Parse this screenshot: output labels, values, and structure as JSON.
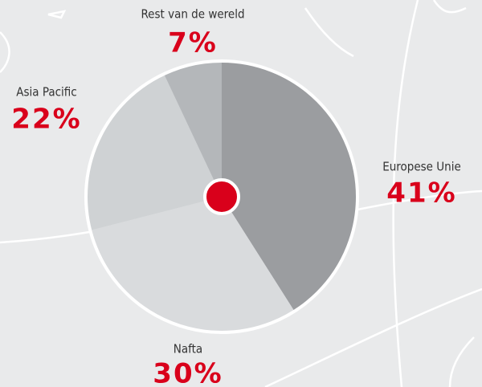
{
  "chart_data": {
    "type": "pie",
    "categories": [
      "Europese Unie",
      "Nafta",
      "Asia Pacific",
      "Rest van de wereld"
    ],
    "values": [
      41,
      30,
      22,
      7
    ],
    "value_labels": [
      "41%",
      "30%",
      "22%",
      "7%"
    ],
    "colors": [
      "#9b9da0",
      "#d9dbdd",
      "#cfd2d4",
      "#b4b7ba"
    ]
  }
}
